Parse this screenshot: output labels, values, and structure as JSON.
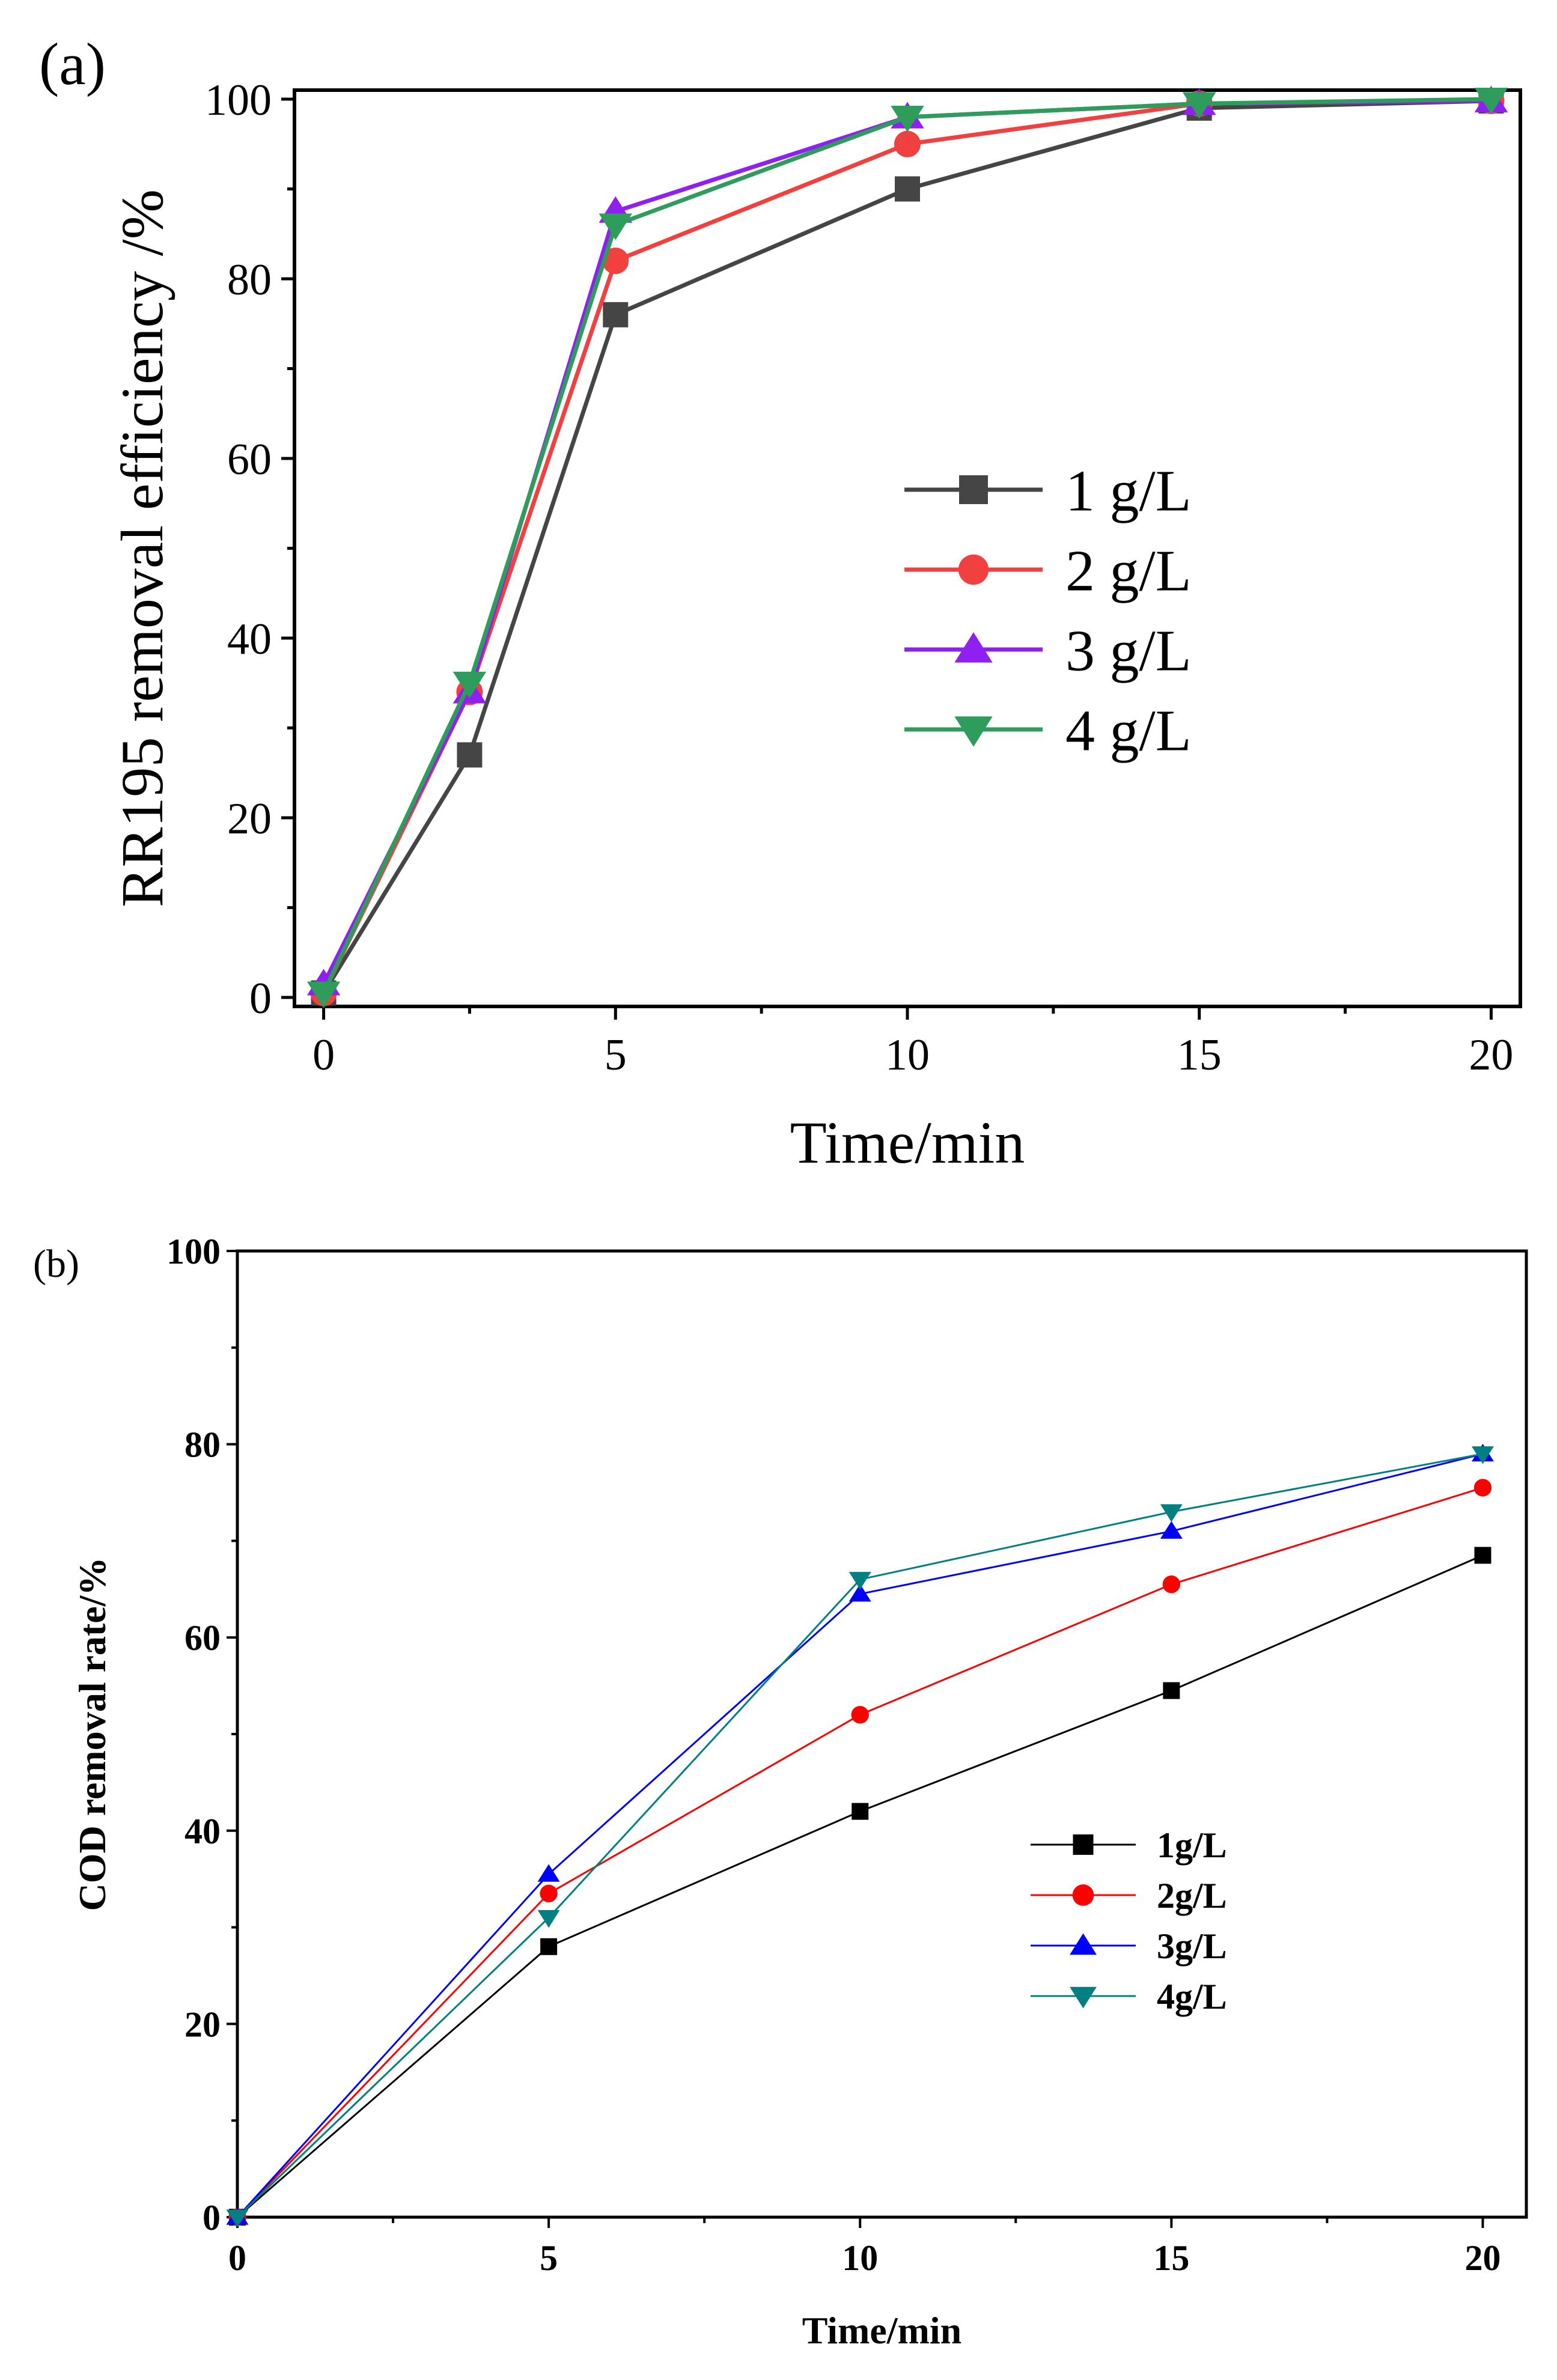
{
  "chart_data": [
    {
      "panel_label": "(a)",
      "type": "line",
      "title": "",
      "xlabel": "Time/min",
      "ylabel": "RR195 removal efficiency /%",
      "xlim": [
        -0.5,
        20.5
      ],
      "ylim": [
        -1,
        101
      ],
      "xticks": [
        0,
        5,
        10,
        15,
        20
      ],
      "xtick_labels": [
        "0",
        "5",
        "10",
        "15",
        "20"
      ],
      "yticks": [
        0,
        20,
        40,
        60,
        80,
        100
      ],
      "ytick_labels": [
        "0",
        "20",
        "40",
        "60",
        "80",
        "100"
      ],
      "grid": false,
      "legend_position": "center-right",
      "x": [
        0,
        2.5,
        5,
        10,
        15,
        20
      ],
      "series": [
        {
          "name": "1 g/L",
          "color": "#454545",
          "marker": "square",
          "values": [
            0.5,
            27,
            76,
            90,
            99,
            99.8
          ]
        },
        {
          "name": "2 g/L",
          "color": "#f04040",
          "marker": "circle",
          "values": [
            0.5,
            34,
            82,
            95,
            99.5,
            99.8
          ]
        },
        {
          "name": "3 g/L",
          "color": "#8f20f0",
          "marker": "triangle-up",
          "values": [
            1.5,
            34,
            87.5,
            98,
            99.5,
            99.8
          ]
        },
        {
          "name": "4 g/L",
          "color": "#2e9c5a",
          "marker": "triangle-down",
          "values": [
            0.5,
            35,
            86,
            98,
            99.5,
            100
          ]
        }
      ]
    },
    {
      "panel_label": "(b)",
      "type": "line",
      "title": "",
      "xlabel": "Time/min",
      "ylabel": "COD removal rate/%",
      "xlim": [
        0,
        20.7
      ],
      "ylim": [
        0,
        100
      ],
      "xticks": [
        0,
        5,
        10,
        15,
        20
      ],
      "xtick_labels": [
        "0",
        "5",
        "10",
        "15",
        "20"
      ],
      "yticks": [
        0,
        20,
        40,
        60,
        80,
        100
      ],
      "ytick_labels": [
        "0",
        "20",
        "40",
        "60",
        "80",
        "100"
      ],
      "grid": false,
      "legend_position": "center-right",
      "x": [
        0,
        5,
        10,
        15,
        20
      ],
      "series": [
        {
          "name": "1g/L",
          "color": "#000000",
          "marker": "square",
          "values": [
            0,
            28,
            42,
            54.5,
            68.5
          ]
        },
        {
          "name": "2g/L",
          "color": "#ff0000",
          "marker": "circle",
          "values": [
            0,
            33.5,
            52,
            65.5,
            75.5
          ]
        },
        {
          "name": "3g/L",
          "color": "#0000ff",
          "marker": "triangle-up",
          "values": [
            0,
            35.5,
            64.5,
            71,
            79
          ]
        },
        {
          "name": "4g/L",
          "color": "#008080",
          "marker": "triangle-down",
          "values": [
            0,
            31,
            66,
            73,
            79
          ]
        }
      ]
    }
  ]
}
